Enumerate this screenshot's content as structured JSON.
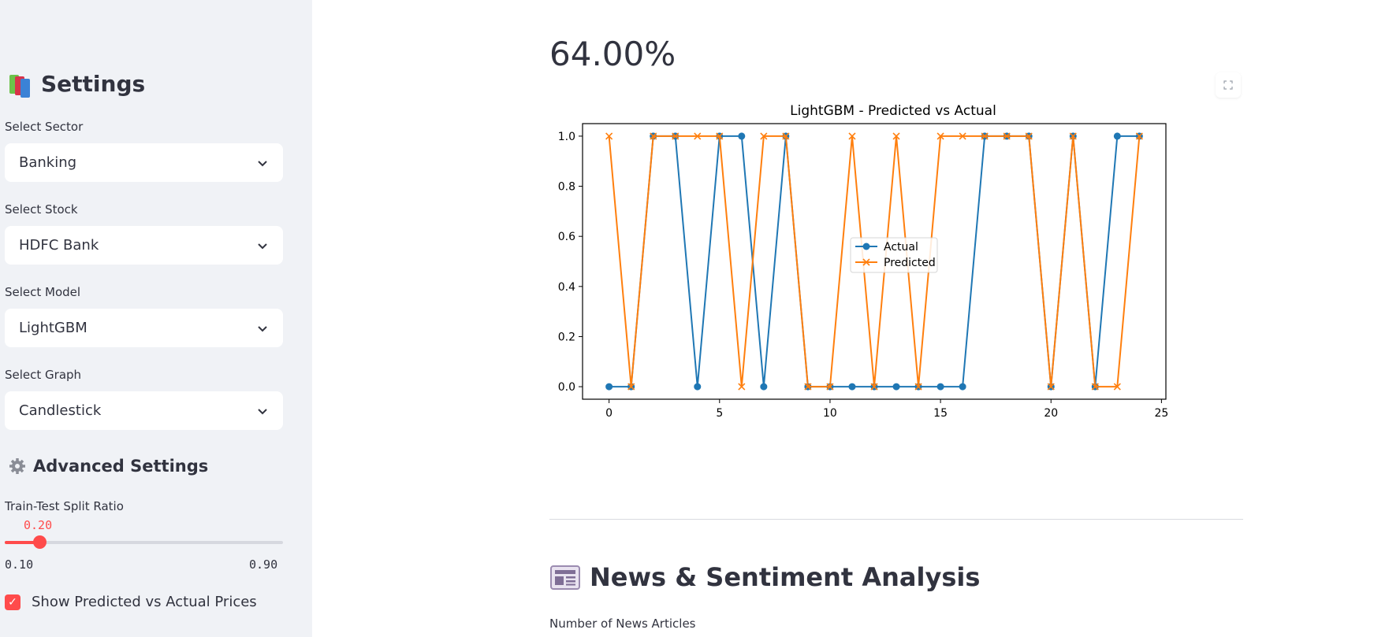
{
  "sidebar": {
    "title": "Settings",
    "title_icon": "books-icon",
    "fields": [
      {
        "label": "Select Sector",
        "value": "Banking"
      },
      {
        "label": "Select Stock",
        "value": "HDFC Bank"
      },
      {
        "label": "Select Model",
        "value": "LightGBM"
      },
      {
        "label": "Select Graph",
        "value": "Candlestick"
      }
    ],
    "advanced": {
      "title": "Advanced Settings",
      "icon": "gear-icon"
    },
    "slider": {
      "label": "Train-Test Split Ratio",
      "value": 0.2,
      "value_text": "0.20",
      "min": 0.1,
      "max": 0.9,
      "min_text": "0.10",
      "max_text": "0.90"
    },
    "checkbox": {
      "label": "Show Predicted vs Actual Prices",
      "checked": true
    }
  },
  "main": {
    "metric": "64.00%",
    "news_title": "News & Sentiment Analysis",
    "news_icon": "newspaper-icon",
    "news_sub": "Number of News Articles"
  },
  "colors": {
    "accent": "#ff4b4b",
    "actual": "#1f77b4",
    "predicted": "#ff7f0e"
  },
  "chart_data": {
    "type": "line",
    "title": "LightGBM - Predicted vs Actual",
    "xlabel": "",
    "ylabel": "",
    "x": [
      0,
      1,
      2,
      3,
      4,
      5,
      6,
      7,
      8,
      9,
      10,
      11,
      12,
      13,
      14,
      15,
      16,
      17,
      18,
      19,
      20,
      21,
      22,
      23,
      24
    ],
    "xlim": [
      -1.2,
      25.2
    ],
    "ylim": [
      -0.05,
      1.05
    ],
    "xticks": [
      0,
      5,
      10,
      15,
      20,
      25
    ],
    "yticks": [
      "0.0",
      "0.2",
      "0.4",
      "0.6",
      "0.8",
      "1.0"
    ],
    "legend": "center",
    "series": [
      {
        "name": "Actual",
        "marker": "o",
        "values": [
          0,
          0,
          1,
          1,
          0,
          1,
          1,
          0,
          1,
          0,
          0,
          0,
          0,
          0,
          0,
          0,
          0,
          1,
          1,
          1,
          0,
          1,
          0,
          1,
          1
        ]
      },
      {
        "name": "Predicted",
        "marker": "x",
        "values": [
          1,
          0,
          1,
          1,
          1,
          1,
          0,
          1,
          1,
          0,
          0,
          1,
          0,
          1,
          0,
          1,
          1,
          1,
          1,
          1,
          0,
          1,
          0,
          0,
          1
        ]
      }
    ]
  }
}
